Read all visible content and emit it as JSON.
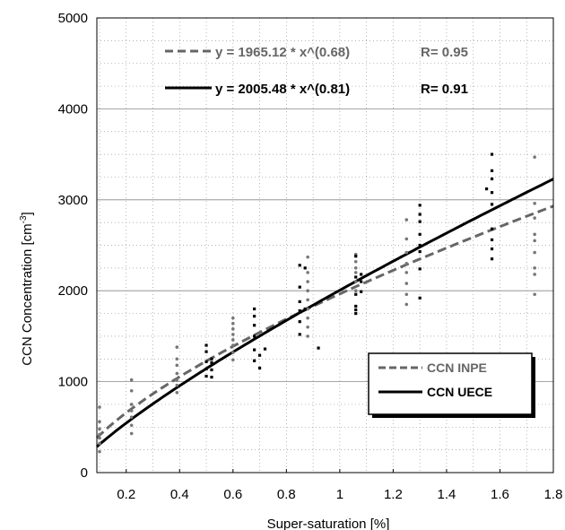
{
  "chart_data": {
    "type": "scatter",
    "title": "",
    "xlabel": "Super-saturation [%]",
    "ylabel_main": "CCN Concentration [cm",
    "ylabel_sup": "-3",
    "ylabel_close": "]",
    "xlim": [
      0.09,
      1.8
    ],
    "ylim": [
      0,
      5000
    ],
    "grid": true,
    "legend_placement": "lower-right",
    "x_ticks": [
      0.2,
      0.4,
      0.6,
      0.8,
      1.0,
      1.2,
      1.4,
      1.6,
      1.8
    ],
    "x_tick_labels": [
      "0.2",
      "0.4",
      "0.6",
      "0.8",
      "1",
      "1.2",
      "1.4",
      "1.6",
      "1.8"
    ],
    "y_ticks": [
      0,
      1000,
      2000,
      3000,
      4000,
      5000
    ],
    "y_tick_labels": [
      "0",
      "1000",
      "2000",
      "3000",
      "4000",
      "5000"
    ],
    "equations": [
      {
        "text": "y = 1965.12 * x^(0.68)",
        "r_text": "R= 0.95",
        "color": "#666666",
        "dashed": true
      },
      {
        "text": "y = 2005.48 * x^(0.81)",
        "r_text": "R= 0.91",
        "color": "#000000",
        "dashed": false
      }
    ],
    "fits": [
      {
        "name": "CCN INPE",
        "a": 1965.12,
        "b": 0.68,
        "color": "#666666",
        "dashed": true
      },
      {
        "name": "CCN UECE",
        "a": 2005.48,
        "b": 0.81,
        "color": "#000000",
        "dashed": false
      }
    ],
    "series": [
      {
        "name": "CCN INPE",
        "color": "#777777",
        "points": [
          [
            0.1,
            230
          ],
          [
            0.1,
            320
          ],
          [
            0.1,
            380
          ],
          [
            0.1,
            420
          ],
          [
            0.1,
            480
          ],
          [
            0.1,
            560
          ],
          [
            0.1,
            720
          ],
          [
            0.22,
            430
          ],
          [
            0.22,
            520
          ],
          [
            0.22,
            610
          ],
          [
            0.22,
            680
          ],
          [
            0.22,
            750
          ],
          [
            0.22,
            900
          ],
          [
            0.22,
            1020
          ],
          [
            0.39,
            880
          ],
          [
            0.39,
            960
          ],
          [
            0.39,
            1020
          ],
          [
            0.39,
            1090
          ],
          [
            0.39,
            1180
          ],
          [
            0.39,
            1250
          ],
          [
            0.39,
            1380
          ],
          [
            0.6,
            1240
          ],
          [
            0.6,
            1320
          ],
          [
            0.6,
            1400
          ],
          [
            0.6,
            1460
          ],
          [
            0.6,
            1520
          ],
          [
            0.6,
            1580
          ],
          [
            0.6,
            1640
          ],
          [
            0.6,
            1700
          ],
          [
            0.88,
            1500
          ],
          [
            0.88,
            1600
          ],
          [
            0.88,
            1700
          ],
          [
            0.88,
            1800
          ],
          [
            0.88,
            1900
          ],
          [
            0.88,
            2000
          ],
          [
            0.88,
            2100
          ],
          [
            0.88,
            2200
          ],
          [
            0.88,
            2370
          ],
          [
            1.06,
            2000
          ],
          [
            1.06,
            2100
          ],
          [
            1.06,
            2200
          ],
          [
            1.06,
            2250
          ],
          [
            1.06,
            2320
          ],
          [
            1.06,
            2400
          ],
          [
            1.25,
            1850
          ],
          [
            1.25,
            1960
          ],
          [
            1.25,
            2080
          ],
          [
            1.25,
            2200
          ],
          [
            1.25,
            2300
          ],
          [
            1.25,
            2420
          ],
          [
            1.25,
            2570
          ],
          [
            1.25,
            2780
          ],
          [
            1.73,
            1960
          ],
          [
            1.73,
            2180
          ],
          [
            1.73,
            2250
          ],
          [
            1.73,
            2420
          ],
          [
            1.73,
            2550
          ],
          [
            1.73,
            2620
          ],
          [
            1.73,
            2800
          ],
          [
            1.73,
            2960
          ],
          [
            1.73,
            3470
          ]
        ]
      },
      {
        "name": "CCN UECE",
        "color": "#000000",
        "points": [
          [
            0.5,
            1060
          ],
          [
            0.5,
            1140
          ],
          [
            0.5,
            1220
          ],
          [
            0.5,
            1330
          ],
          [
            0.5,
            1400
          ],
          [
            0.52,
            1050
          ],
          [
            0.52,
            1130
          ],
          [
            0.52,
            1210
          ],
          [
            0.52,
            1250
          ],
          [
            0.68,
            1230
          ],
          [
            0.68,
            1350
          ],
          [
            0.68,
            1500
          ],
          [
            0.68,
            1620
          ],
          [
            0.68,
            1720
          ],
          [
            0.68,
            1800
          ],
          [
            0.7,
            1150
          ],
          [
            0.7,
            1290
          ],
          [
            0.72,
            1360
          ],
          [
            0.85,
            1520
          ],
          [
            0.85,
            1660
          ],
          [
            0.85,
            1780
          ],
          [
            0.85,
            1880
          ],
          [
            0.85,
            2040
          ],
          [
            0.85,
            2280
          ],
          [
            0.87,
            1800
          ],
          [
            0.87,
            2250
          ],
          [
            0.92,
            1370
          ],
          [
            1.06,
            1750
          ],
          [
            1.06,
            1790
          ],
          [
            1.06,
            1830
          ],
          [
            1.06,
            1960
          ],
          [
            1.06,
            2150
          ],
          [
            1.06,
            2380
          ],
          [
            1.08,
            1990
          ],
          [
            1.08,
            2100
          ],
          [
            1.08,
            2180
          ],
          [
            1.3,
            1920
          ],
          [
            1.3,
            2240
          ],
          [
            1.3,
            2430
          ],
          [
            1.3,
            2500
          ],
          [
            1.3,
            2620
          ],
          [
            1.3,
            2760
          ],
          [
            1.3,
            2840
          ],
          [
            1.3,
            2940
          ],
          [
            1.57,
            2350
          ],
          [
            1.57,
            2460
          ],
          [
            1.57,
            2560
          ],
          [
            1.57,
            2680
          ],
          [
            1.57,
            2950
          ],
          [
            1.57,
            3080
          ],
          [
            1.57,
            3230
          ],
          [
            1.57,
            3320
          ],
          [
            1.57,
            3500
          ],
          [
            1.55,
            3120
          ]
        ]
      }
    ]
  }
}
